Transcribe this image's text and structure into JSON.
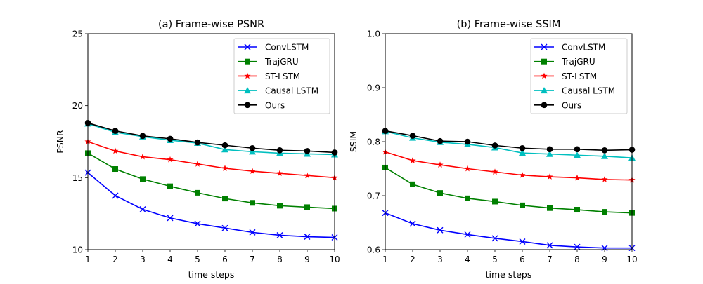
{
  "chart_data": [
    {
      "type": "line",
      "title": "(a) Frame-wise PSNR",
      "xlabel": "time steps",
      "ylabel": "PSNR",
      "x": [
        1,
        2,
        3,
        4,
        5,
        6,
        7,
        8,
        9,
        10
      ],
      "xlim": [
        1,
        10
      ],
      "ylim": [
        10,
        25
      ],
      "xticks": [
        "1",
        "2",
        "3",
        "4",
        "5",
        "6",
        "7",
        "8",
        "9",
        "10"
      ],
      "yticks": [
        "10",
        "15",
        "20",
        "25"
      ],
      "ytick_values": [
        10,
        15,
        20,
        25
      ],
      "grid": false,
      "legend_position": "upper right",
      "series": [
        {
          "name": "ConvLSTM",
          "color": "#0000ff",
          "marker": "x",
          "values": [
            15.35,
            13.75,
            12.8,
            12.2,
            11.8,
            11.5,
            11.2,
            11.0,
            10.9,
            10.85
          ]
        },
        {
          "name": "TrajGRU",
          "color": "#008000",
          "marker": "square",
          "values": [
            16.7,
            15.6,
            14.9,
            14.4,
            13.95,
            13.55,
            13.25,
            13.05,
            12.95,
            12.85
          ]
        },
        {
          "name": "ST-LSTM",
          "color": "#ff0000",
          "marker": "star",
          "values": [
            17.5,
            16.85,
            16.45,
            16.25,
            15.95,
            15.65,
            15.45,
            15.3,
            15.15,
            15.0
          ]
        },
        {
          "name": "Causal LSTM",
          "color": "#00bfbf",
          "marker": "triangle",
          "values": [
            18.75,
            18.15,
            17.85,
            17.6,
            17.4,
            16.95,
            16.8,
            16.7,
            16.65,
            16.6
          ]
        },
        {
          "name": "Ours",
          "color": "#000000",
          "marker": "circle",
          "values": [
            18.8,
            18.25,
            17.9,
            17.7,
            17.45,
            17.25,
            17.05,
            16.9,
            16.85,
            16.75
          ]
        }
      ]
    },
    {
      "type": "line",
      "title": "(b) Frame-wise SSIM",
      "xlabel": "time steps",
      "ylabel": "SSIM",
      "x": [
        1,
        2,
        3,
        4,
        5,
        6,
        7,
        8,
        9,
        10
      ],
      "xlim": [
        1,
        10
      ],
      "ylim": [
        0.6,
        1.0
      ],
      "xticks": [
        "1",
        "2",
        "3",
        "4",
        "5",
        "6",
        "7",
        "8",
        "9",
        "10"
      ],
      "yticks": [
        "0.6",
        "0.7",
        "0.8",
        "0.9",
        "1.0"
      ],
      "ytick_values": [
        0.6,
        0.7,
        0.8,
        0.9,
        1.0
      ],
      "grid": false,
      "legend_position": "upper right",
      "series": [
        {
          "name": "ConvLSTM",
          "color": "#0000ff",
          "marker": "x",
          "values": [
            0.668,
            0.648,
            0.636,
            0.628,
            0.621,
            0.615,
            0.608,
            0.605,
            0.603,
            0.603
          ]
        },
        {
          "name": "TrajGRU",
          "color": "#008000",
          "marker": "square",
          "values": [
            0.752,
            0.721,
            0.705,
            0.695,
            0.689,
            0.682,
            0.677,
            0.674,
            0.67,
            0.668
          ]
        },
        {
          "name": "ST-LSTM",
          "color": "#ff0000",
          "marker": "star",
          "values": [
            0.781,
            0.765,
            0.757,
            0.75,
            0.744,
            0.738,
            0.735,
            0.733,
            0.73,
            0.729
          ]
        },
        {
          "name": "Causal LSTM",
          "color": "#00bfbf",
          "marker": "triangle",
          "values": [
            0.819,
            0.807,
            0.799,
            0.795,
            0.789,
            0.779,
            0.777,
            0.775,
            0.773,
            0.77
          ]
        },
        {
          "name": "Ours",
          "color": "#000000",
          "marker": "circle",
          "values": [
            0.82,
            0.811,
            0.801,
            0.8,
            0.793,
            0.788,
            0.786,
            0.786,
            0.784,
            0.785
          ]
        }
      ]
    }
  ]
}
